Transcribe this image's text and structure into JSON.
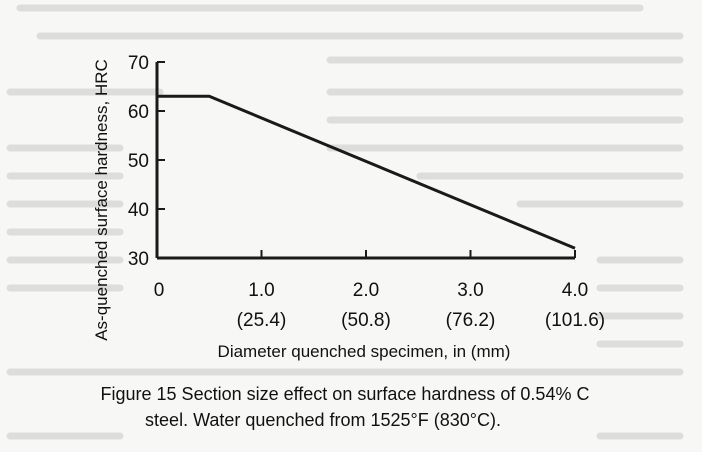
{
  "chart_data": {
    "type": "line",
    "title": "",
    "xlabel": "Diameter quenched specimen, in (mm)",
    "ylabel": "As-quenched surface hardness, HRC",
    "xlim": [
      0,
      4.0
    ],
    "ylim": [
      30,
      70
    ],
    "x_ticks": [
      {
        "value": 0,
        "label": "0",
        "sublabel": ""
      },
      {
        "value": 1.0,
        "label": "1.0",
        "sublabel": "(25.4)"
      },
      {
        "value": 2.0,
        "label": "2.0",
        "sublabel": "(50.8)"
      },
      {
        "value": 3.0,
        "label": "3.0",
        "sublabel": "(76.2)"
      },
      {
        "value": 4.0,
        "label": "4.0",
        "sublabel": "(101.6)"
      }
    ],
    "y_ticks": [
      {
        "value": 30,
        "label": "30"
      },
      {
        "value": 40,
        "label": "40"
      },
      {
        "value": 50,
        "label": "50"
      },
      {
        "value": 60,
        "label": "60"
      },
      {
        "value": 70,
        "label": "70"
      }
    ],
    "series": [
      {
        "x": [
          0,
          0.5,
          4.0
        ],
        "y": [
          63,
          63,
          32
        ]
      }
    ],
    "grid": false,
    "legend": "none"
  },
  "caption": {
    "line1": "Figure 15 Section size effect on surface hardness of 0.54% C",
    "line2": "steel.  Water quenched from 1525°F (830°C)."
  },
  "colors": {
    "line": "#1a1a1a",
    "axis": "#1a1a1a"
  }
}
